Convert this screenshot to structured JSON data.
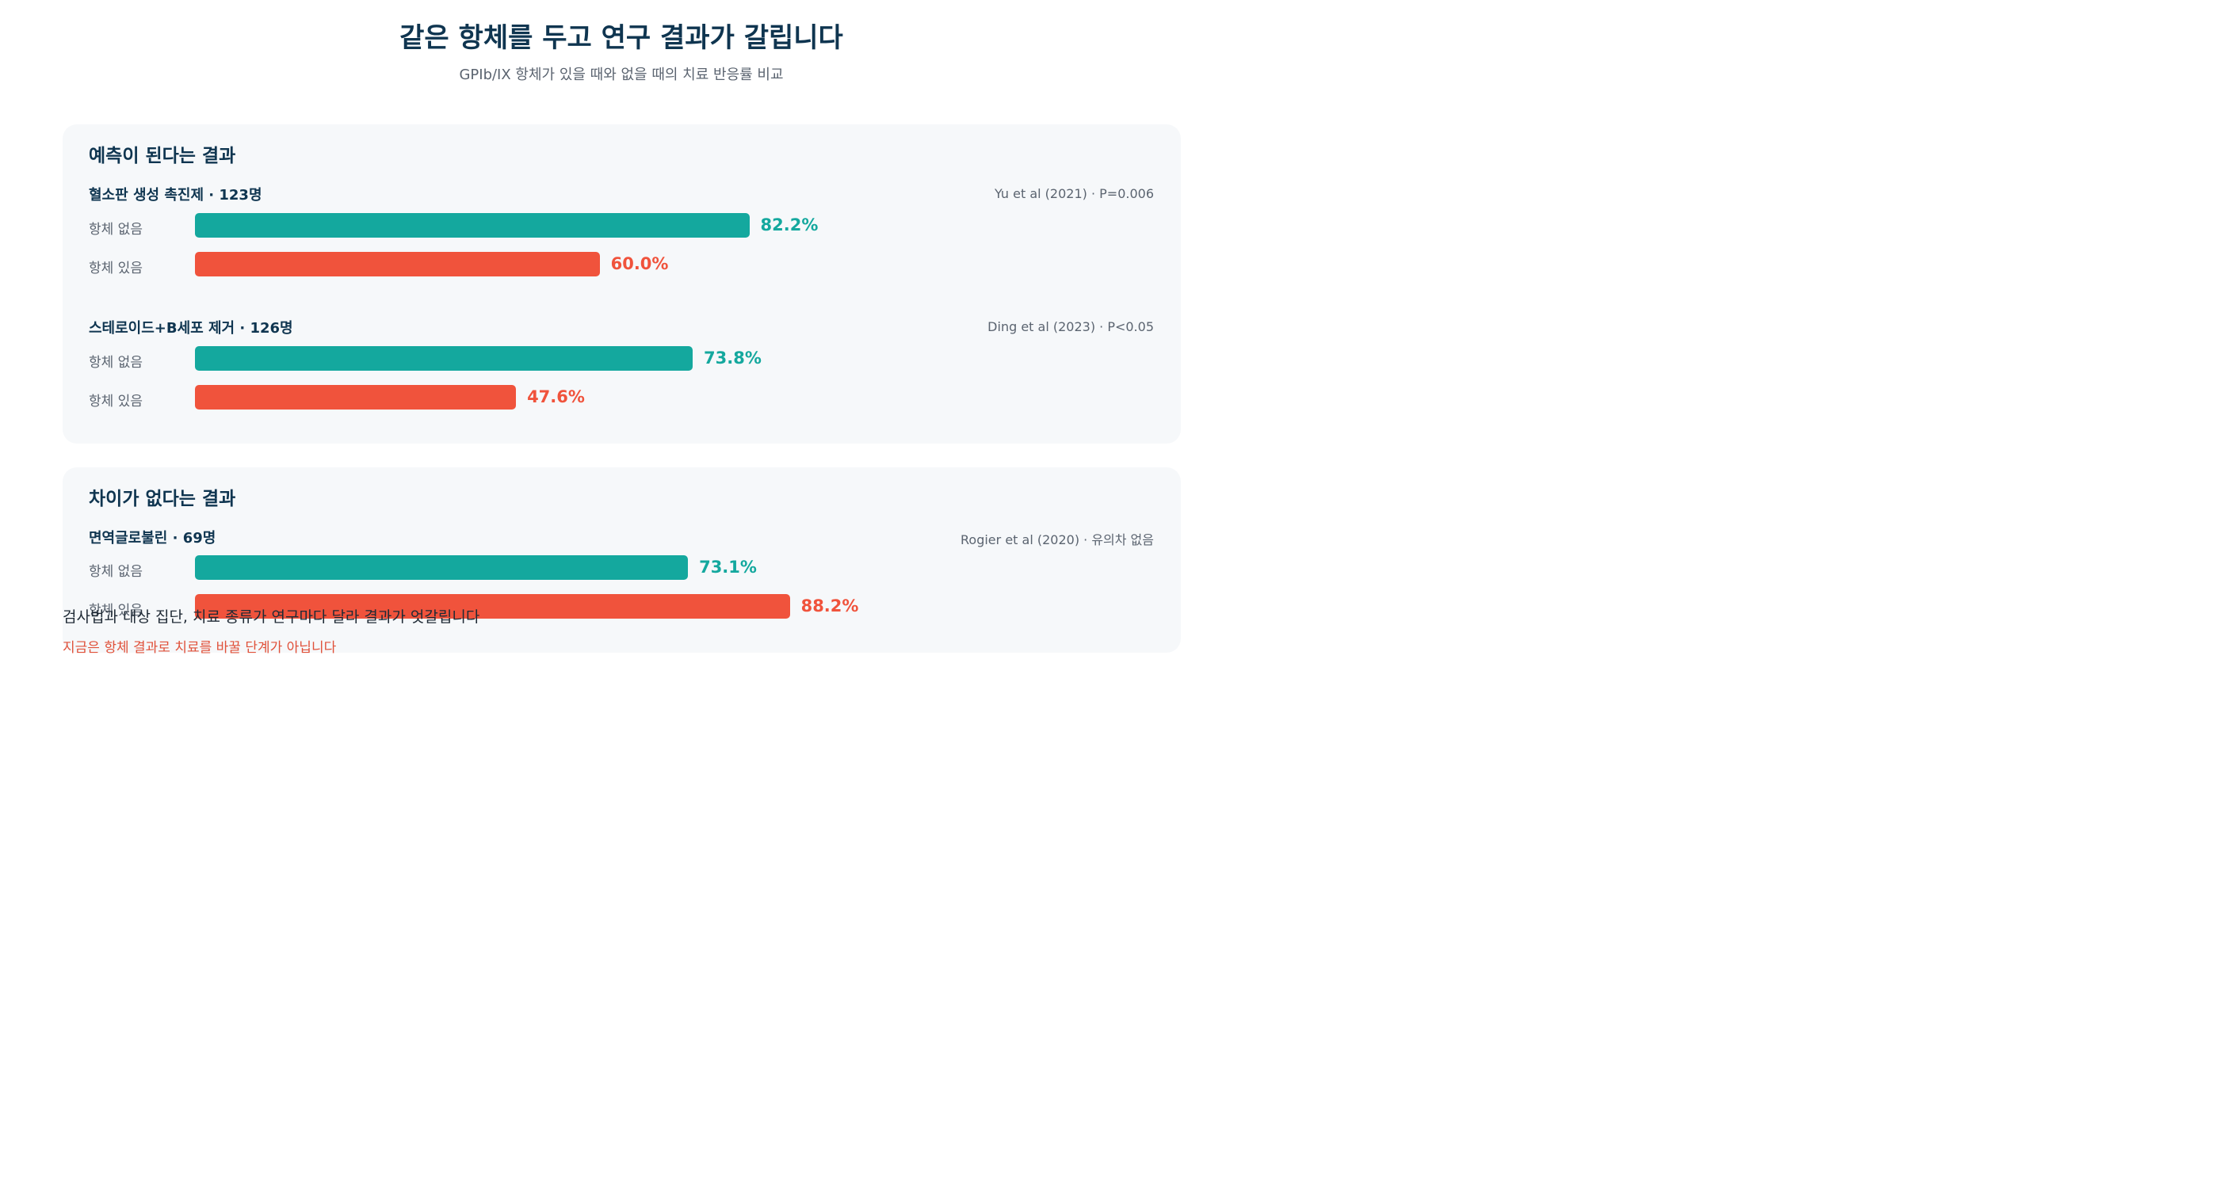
{
  "colors": {
    "no_antibody": "#14a89e",
    "with_antibody": "#f0533c"
  },
  "chart_data": {
    "type": "bar",
    "orientation": "horizontal",
    "title": "같은 항체를 두고 연구 결과가 갈립니다",
    "subtitle": "GPIb/IX 항체가 있을 때와 없을 때의 치료 반응률 비교",
    "xlim": [
      0,
      100
    ],
    "series_names": [
      "항체 없음",
      "항체 있음"
    ],
    "groups": [
      {
        "heading": "예측이 된다는 결과",
        "studies": [
          {
            "label": "혈소판 생성 촉진제 · 123명",
            "source": "Yu et al (2021) · P=0.006",
            "values": [
              82.2,
              60.0
            ],
            "value_labels": [
              "82.2%",
              "60.0%"
            ]
          },
          {
            "label": "스테로이드+B세포 제거 · 126명",
            "source": "Ding et al (2023) · P<0.05",
            "values": [
              73.8,
              47.6
            ],
            "value_labels": [
              "73.8%",
              "47.6%"
            ]
          }
        ]
      },
      {
        "heading": "차이가 없다는 결과",
        "studies": [
          {
            "label": "면역글로불린 · 69명",
            "source": "Rogier et al (2020) · 유의차 없음",
            "values": [
              73.1,
              88.2
            ],
            "value_labels": [
              "73.1%",
              "88.2%"
            ]
          }
        ]
      }
    ]
  },
  "footnote": "검사법과 대상 집단, 치료 종류가 연구마다 달라 결과가 엇갈립니다",
  "warning": "지금은 항체 결과로 치료를 바꿀 단계가 아닙니다"
}
